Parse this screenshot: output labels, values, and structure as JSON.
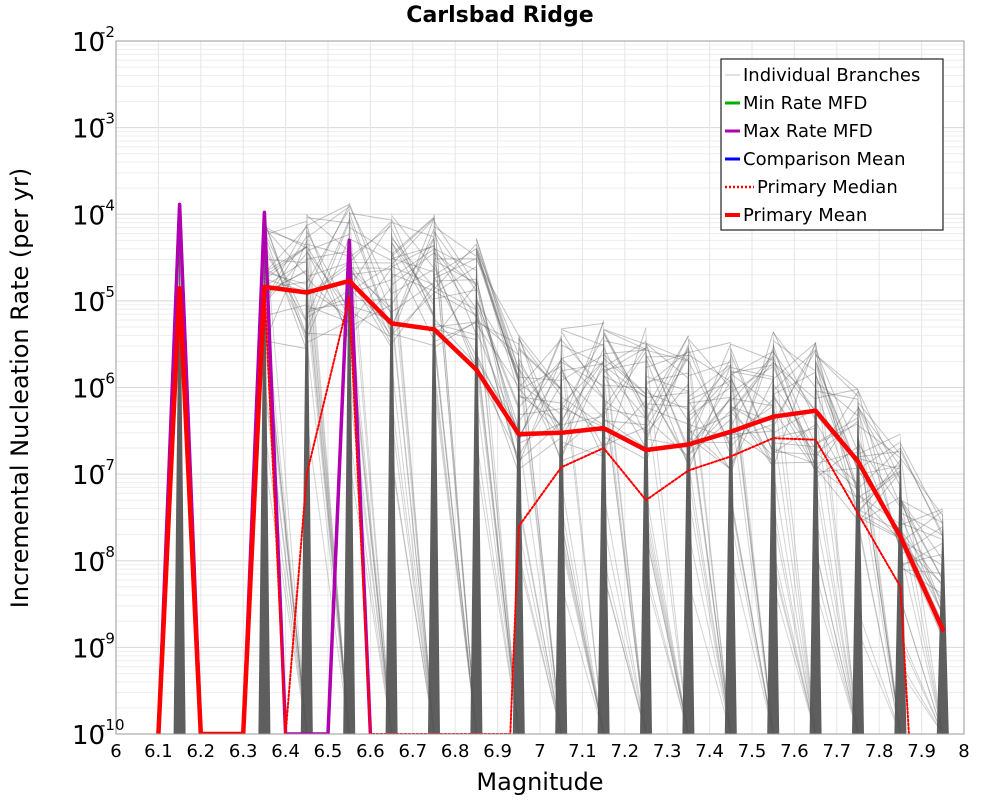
{
  "chart_data": {
    "type": "line",
    "title": "Carlsbad Ridge",
    "xlabel": "Magnitude",
    "ylabel": "Incremental Nucleation Rate (per yr)",
    "xlim": [
      6,
      8
    ],
    "ylim": [
      1e-10,
      0.01
    ],
    "yscale": "log",
    "grid": true,
    "legend_position": "top-right",
    "x_ticks": [
      "6",
      "6.1",
      "6.2",
      "6.3",
      "6.4",
      "6.5",
      "6.6",
      "6.7",
      "6.8",
      "6.9",
      "7",
      "7.1",
      "7.2",
      "7.3",
      "7.4",
      "7.5",
      "7.6",
      "7.7",
      "7.8",
      "7.9",
      "8"
    ],
    "y_ticks": [
      {
        "base": "10",
        "exp": "-2"
      },
      {
        "base": "10",
        "exp": "-3"
      },
      {
        "base": "10",
        "exp": "-4"
      },
      {
        "base": "10",
        "exp": "-5"
      },
      {
        "base": "10",
        "exp": "-6"
      },
      {
        "base": "10",
        "exp": "-7"
      },
      {
        "base": "10",
        "exp": "-8"
      },
      {
        "base": "10",
        "exp": "-9"
      },
      {
        "base": "10",
        "exp": "-10"
      }
    ],
    "legend": [
      {
        "label": "Individual Branches",
        "color": "#c0c0c0",
        "style": "thin"
      },
      {
        "label": "Min Rate MFD",
        "color": "#00b000",
        "style": "solid"
      },
      {
        "label": "Max Rate MFD",
        "color": "#b000b0",
        "style": "solid"
      },
      {
        "label": "Comparison Mean",
        "color": "#0000ff",
        "style": "solid"
      },
      {
        "label": "Primary Median",
        "color": "#ff0000",
        "style": "dotted"
      },
      {
        "label": "Primary Mean",
        "color": "#ff0000",
        "style": "thick"
      }
    ],
    "branch_color": "#555555",
    "branch_peaks": [
      {
        "x": 6.15,
        "y": 0.00012
      },
      {
        "x": 6.35,
        "y": 0.00011
      },
      {
        "x": 6.45,
        "y": 0.0001
      },
      {
        "x": 6.55,
        "y": 0.00014
      },
      {
        "x": 6.65,
        "y": 0.00011
      },
      {
        "x": 6.75,
        "y": 0.0001
      },
      {
        "x": 6.85,
        "y": 5.5e-05
      },
      {
        "x": 6.95,
        "y": 4e-06
      },
      {
        "x": 7.05,
        "y": 5e-06
      },
      {
        "x": 7.15,
        "y": 6e-06
      },
      {
        "x": 7.25,
        "y": 5e-06
      },
      {
        "x": 7.35,
        "y": 4e-06
      },
      {
        "x": 7.45,
        "y": 3.5e-06
      },
      {
        "x": 7.55,
        "y": 4.5e-06
      },
      {
        "x": 7.65,
        "y": 3.5e-06
      },
      {
        "x": 7.75,
        "y": 1e-06
      },
      {
        "x": 7.85,
        "y": 3e-07
      },
      {
        "x": 7.95,
        "y": 4e-08
      }
    ],
    "series": [
      {
        "name": "Min Rate MFD",
        "color": "#00b000",
        "x": [
          6.1,
          6.15,
          6.2
        ],
        "y": [
          1e-10,
          0.00013,
          1e-10
        ]
      },
      {
        "name": "Max Rate MFD",
        "color": "#b000b0",
        "x": [
          6.1,
          6.15,
          6.2,
          6.3,
          6.35,
          6.4,
          6.5,
          6.55,
          6.6
        ],
        "y": [
          1e-10,
          0.00013,
          1e-10,
          1e-10,
          0.000105,
          1e-10,
          1e-10,
          5e-05,
          1e-10
        ]
      },
      {
        "name": "Comparison Mean",
        "color": "#0000ff",
        "x": [
          6.1,
          6.15,
          6.2,
          6.3,
          6.35,
          6.45,
          6.55,
          6.65,
          6.75,
          6.85,
          6.95,
          7.05,
          7.15,
          7.25,
          7.35,
          7.45,
          7.55,
          7.65,
          7.75,
          7.85,
          7.95
        ],
        "y": [
          1e-10,
          1.4e-05,
          1e-10,
          1e-10,
          1.45e-05,
          1.25e-05,
          1.7e-05,
          5.5e-06,
          4.7e-06,
          1.6e-06,
          2.8e-07,
          3e-07,
          3.3e-07,
          1.85e-07,
          2.2e-07,
          3e-07,
          4.6e-07,
          5.3e-07,
          1.4e-07,
          1.9e-08,
          1.6e-09
        ]
      },
      {
        "name": "Primary Median",
        "color": "#ff0000",
        "x": [
          6.1,
          6.15,
          6.2,
          6.3,
          6.35,
          6.4,
          6.45,
          6.55,
          6.6,
          6.93,
          6.95,
          7.05,
          7.15,
          7.25,
          7.35,
          7.45,
          7.55,
          7.65,
          7.75,
          7.85,
          7.87
        ],
        "y": [
          1e-10,
          1.4e-05,
          1e-10,
          1e-10,
          1.45e-05,
          1e-10,
          1e-07,
          1.1e-05,
          1e-10,
          1e-10,
          2.5e-08,
          1.2e-07,
          2e-07,
          5e-08,
          1.1e-07,
          1.6e-07,
          2.6e-07,
          2.5e-07,
          3.5e-08,
          5e-09,
          1e-10
        ]
      },
      {
        "name": "Primary Mean",
        "color": "#ff0000",
        "x": [
          6.1,
          6.15,
          6.2,
          6.3,
          6.35,
          6.45,
          6.55,
          6.65,
          6.75,
          6.85,
          6.95,
          7.05,
          7.15,
          7.25,
          7.35,
          7.45,
          7.55,
          7.65,
          7.75,
          7.85,
          7.95
        ],
        "y": [
          1e-10,
          1.4e-05,
          1e-10,
          1e-10,
          1.45e-05,
          1.25e-05,
          1.7e-05,
          5.5e-06,
          4.7e-06,
          1.6e-06,
          2.9e-07,
          3e-07,
          3.4e-07,
          1.9e-07,
          2.2e-07,
          3.1e-07,
          4.6e-07,
          5.4e-07,
          1.4e-07,
          1.9e-08,
          1.6e-09
        ]
      }
    ]
  }
}
